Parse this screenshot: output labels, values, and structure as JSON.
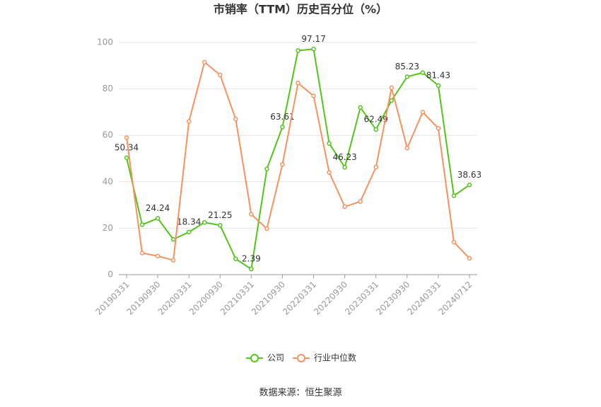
{
  "chart_data": {
    "type": "line",
    "title": "市销率（TTM）历史百分位（%）",
    "source": "数据来源：恒生聚源",
    "categories": [
      "20190331",
      null,
      "20190930",
      null,
      "20200331",
      null,
      "20200930",
      null,
      "20210331",
      null,
      "20210930",
      null,
      "20220331",
      null,
      "20220930",
      null,
      "20230331",
      null,
      "20230930",
      null,
      "20240331",
      null,
      "20240712"
    ],
    "series": [
      {
        "name": "公司",
        "color": "#52c41a",
        "values": [
          50.34,
          21.5,
          24.24,
          15.2,
          18.34,
          22.5,
          21.25,
          6.8,
          2.39,
          45.5,
          63.61,
          96.5,
          97.17,
          56.5,
          46.23,
          72,
          62.49,
          75,
          85.23,
          87,
          81.43,
          34,
          38.63
        ],
        "value_labels": [
          "50.34",
          null,
          "24.24",
          null,
          "18.34",
          null,
          "21.25",
          null,
          "2.39",
          null,
          "63.61",
          null,
          "97.17",
          null,
          "46.23",
          null,
          "62.49",
          null,
          "85.23",
          null,
          "81.43",
          null,
          "38.63"
        ]
      },
      {
        "name": "行业中位数",
        "color": "#f5925e",
        "values": [
          59,
          9.3,
          8,
          6.2,
          66,
          91.5,
          86,
          67,
          26,
          19.8,
          47.5,
          82.5,
          77,
          44,
          29.3,
          31.5,
          46.3,
          80.5,
          54.5,
          70,
          63,
          14,
          7
        ]
      }
    ],
    "ylim": [
      0,
      100
    ],
    "yticks": [
      0,
      20,
      40,
      60,
      80,
      100
    ],
    "grid": true
  }
}
